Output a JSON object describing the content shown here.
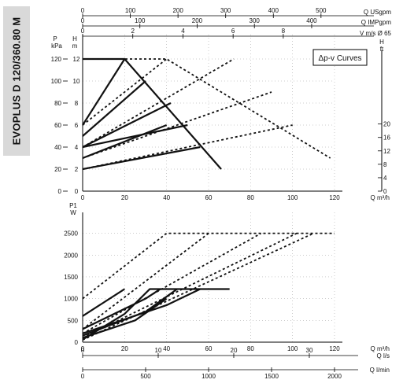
{
  "product_title": "EVOPLUS D 120/360.80 M",
  "chart_data": [
    {
      "type": "line",
      "name": "Δp-v Curves",
      "legend_label": "Δp-v Curves",
      "x_axis_bottom": {
        "label": "Q m³/h",
        "ticks": [
          0,
          20,
          40,
          60,
          80,
          100,
          120
        ]
      },
      "x_axis_top": [
        {
          "label": "Q USgpm",
          "ticks": [
            0,
            100,
            200,
            300,
            400,
            500
          ],
          "per_m3h": 4.4029
        },
        {
          "label": "Q IMPgpm",
          "ticks": [
            0,
            100,
            200,
            300,
            400
          ],
          "per_m3h": 3.6662
        },
        {
          "label": "V m/s Ø 65",
          "ticks": [
            0,
            2,
            4,
            6,
            8
          ],
          "per_m3h": 0.0837
        }
      ],
      "y_axis_left": {
        "label_top": "P",
        "label_unit": "kPa",
        "ticks": [
          0,
          20,
          40,
          60,
          80,
          100,
          120
        ],
        "range": [
          0,
          120
        ]
      },
      "y_axis_left2": {
        "label_top": "H",
        "label_unit": "m",
        "ticks": [
          0,
          2,
          4,
          6,
          8,
          10,
          12
        ]
      },
      "y_axis_right": {
        "label_top": "H",
        "label_unit": "ft",
        "ticks": [
          0,
          4,
          8,
          12,
          16,
          20
        ]
      },
      "xlim": [
        0,
        120
      ],
      "grid": true,
      "series": [
        {
          "style": "solid",
          "points": [
            [
              0,
              2
            ],
            [
              56,
              4
            ]
          ]
        },
        {
          "style": "solid",
          "points": [
            [
              0,
              4
            ],
            [
              50,
              6
            ]
          ]
        },
        {
          "style": "solid",
          "points": [
            [
              0,
              6
            ],
            [
              20,
              12
            ]
          ]
        },
        {
          "style": "solid",
          "points": [
            [
              0,
              3
            ],
            [
              40,
              6
            ]
          ]
        },
        {
          "style": "solid",
          "points": [
            [
              0,
              4
            ],
            [
              42,
              8
            ]
          ]
        },
        {
          "style": "solid",
          "points": [
            [
              0,
              5
            ],
            [
              30,
              10
            ]
          ]
        },
        {
          "style": "solid",
          "points": [
            [
              0,
              12
            ],
            [
              20,
              12
            ],
            [
              66,
              2
            ]
          ]
        },
        {
          "style": "dotted",
          "points": [
            [
              0,
              2
            ],
            [
              100,
              6
            ]
          ]
        },
        {
          "style": "dotted",
          "points": [
            [
              0,
              3
            ],
            [
              90,
              9
            ]
          ]
        },
        {
          "style": "dotted",
          "points": [
            [
              0,
              4
            ],
            [
              72,
              12
            ]
          ]
        },
        {
          "style": "dotted",
          "points": [
            [
              0,
              6
            ],
            [
              40,
              12
            ]
          ]
        },
        {
          "style": "dotted",
          "points": [
            [
              0,
              12
            ],
            [
              40,
              12
            ],
            [
              118,
              3
            ]
          ]
        }
      ]
    },
    {
      "type": "line",
      "x_axis": {
        "label": "Q m³/h",
        "ticks": [
          0,
          20,
          40,
          60,
          80,
          100,
          120
        ]
      },
      "x_axis_bottom": [
        {
          "label": "Q l/s",
          "ticks": [
            0,
            10,
            20,
            30
          ],
          "per_m3h": 0.2778
        },
        {
          "label": "Q l/min",
          "ticks": [
            0,
            500,
            1000,
            1500,
            2000
          ],
          "per_m3h": 16.667
        }
      ],
      "y_axis": {
        "label_top": "P1",
        "label_unit": "W",
        "ticks": [
          0,
          500,
          1000,
          1500,
          2000,
          2500
        ],
        "range": [
          0,
          2800
        ]
      },
      "xlim": [
        0,
        120
      ],
      "grid": true,
      "series": [
        {
          "style": "solid",
          "points": [
            [
              0,
              60
            ],
            [
              20,
              650
            ],
            [
              32,
              1220
            ],
            [
              70,
              1220
            ]
          ]
        },
        {
          "style": "solid",
          "points": [
            [
              0,
              100
            ],
            [
              25,
              500
            ],
            [
              40,
              1000
            ]
          ]
        },
        {
          "style": "solid",
          "points": [
            [
              0,
              150
            ],
            [
              30,
              700
            ],
            [
              45,
              1220
            ]
          ]
        },
        {
          "style": "solid",
          "points": [
            [
              0,
              200
            ],
            [
              40,
              850
            ],
            [
              56,
              1220
            ]
          ]
        },
        {
          "style": "solid",
          "points": [
            [
              0,
              300
            ],
            [
              30,
              1000
            ],
            [
              37,
              1220
            ]
          ]
        },
        {
          "style": "solid",
          "points": [
            [
              0,
              600
            ],
            [
              20,
              1220
            ]
          ]
        },
        {
          "style": "dotted",
          "points": [
            [
              0,
              1000
            ],
            [
              40,
              2500
            ],
            [
              120,
              2500
            ]
          ]
        },
        {
          "style": "dotted",
          "points": [
            [
              0,
              300
            ],
            [
              60,
              2500
            ]
          ]
        },
        {
          "style": "dotted",
          "points": [
            [
              0,
              200
            ],
            [
              85,
              2500
            ]
          ]
        },
        {
          "style": "dotted",
          "points": [
            [
              0,
              100
            ],
            [
              102,
              2500
            ]
          ]
        },
        {
          "style": "dotted",
          "points": [
            [
              0,
              50
            ],
            [
              110,
              2500
            ]
          ]
        }
      ]
    }
  ]
}
